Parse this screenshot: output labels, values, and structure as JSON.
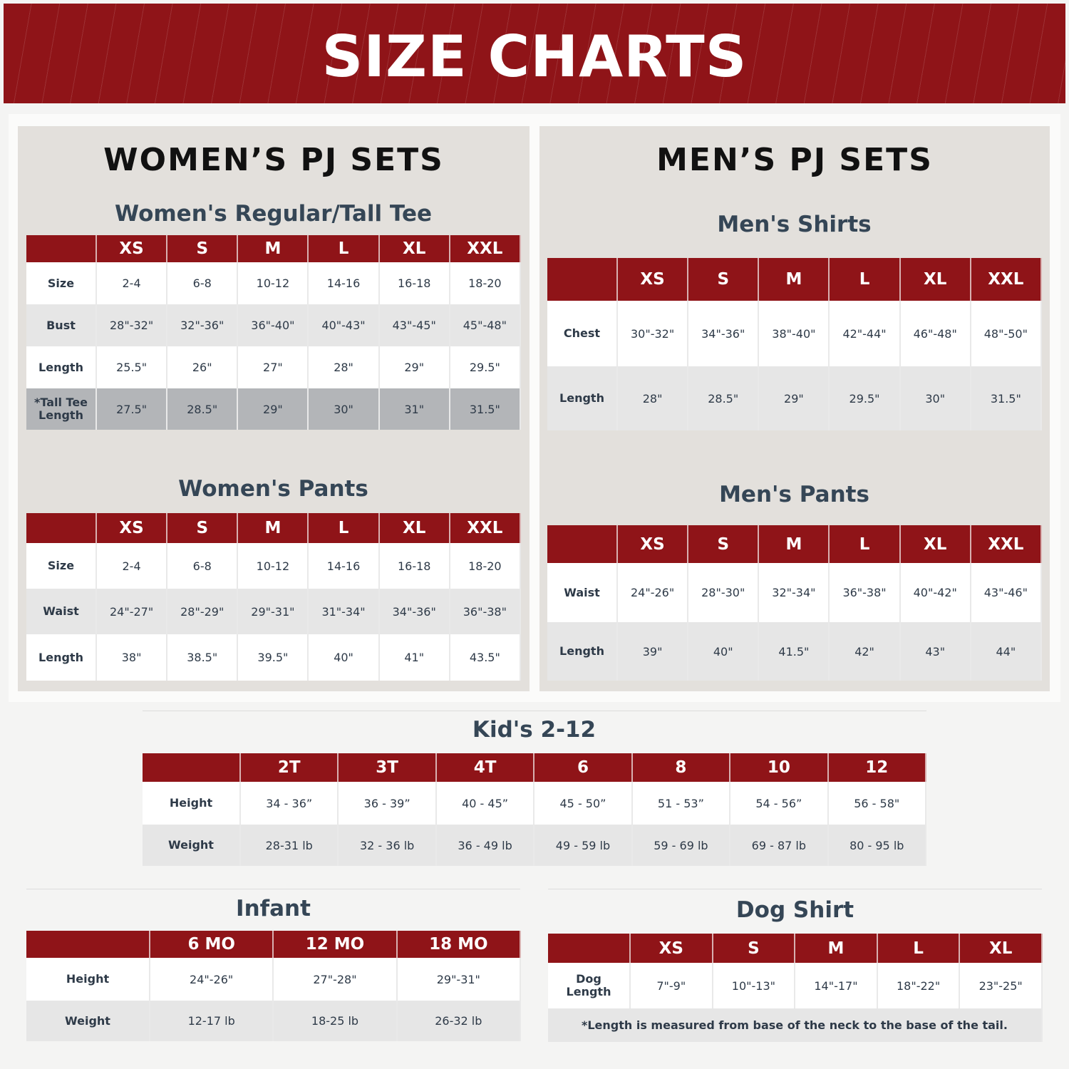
{
  "title": "SIZE CHARTS",
  "colors": {
    "accent": "#8f1418",
    "panel": "#e3e0dc",
    "text": "#2e3a48"
  },
  "women": {
    "heading": "WOMEN’S PJ SETS",
    "tee": {
      "title": "Women's Regular/Tall Tee",
      "columns": [
        "XS",
        "S",
        "M",
        "L",
        "XL",
        "XXL"
      ],
      "rows": [
        {
          "label": "Size",
          "values": [
            "2-4",
            "6-8",
            "10-12",
            "14-16",
            "16-18",
            "18-20"
          ]
        },
        {
          "label": "Bust",
          "values": [
            "28\"-32\"",
            "32\"-36\"",
            "36\"-40\"",
            "40\"-43\"",
            "43\"-45\"",
            "45\"-48\""
          ]
        },
        {
          "label": "Length",
          "values": [
            "25.5\"",
            "26\"",
            "27\"",
            "28\"",
            "29\"",
            "29.5\""
          ]
        },
        {
          "label": "*Tall Tee Length",
          "values": [
            "27.5\"",
            "28.5\"",
            "29\"",
            "30\"",
            "31\"",
            "31.5\""
          ]
        }
      ]
    },
    "pants": {
      "title": "Women's Pants",
      "columns": [
        "XS",
        "S",
        "M",
        "L",
        "XL",
        "XXL"
      ],
      "rows": [
        {
          "label": "Size",
          "values": [
            "2-4",
            "6-8",
            "10-12",
            "14-16",
            "16-18",
            "18-20"
          ]
        },
        {
          "label": "Waist",
          "values": [
            "24\"-27\"",
            "28\"-29\"",
            "29\"-31\"",
            "31\"-34\"",
            "34\"-36\"",
            "36\"-38\""
          ]
        },
        {
          "label": "Length",
          "values": [
            "38\"",
            "38.5\"",
            "39.5\"",
            "40\"",
            "41\"",
            "43.5\""
          ]
        }
      ]
    }
  },
  "men": {
    "heading": "MEN’S PJ SETS",
    "shirts": {
      "title": "Men's Shirts",
      "columns": [
        "XS",
        "S",
        "M",
        "L",
        "XL",
        "XXL"
      ],
      "rows": [
        {
          "label": "Chest",
          "values": [
            "30\"-32\"",
            "34\"-36\"",
            "38\"-40\"",
            "42\"-44\"",
            "46\"-48\"",
            "48\"-50\""
          ]
        },
        {
          "label": "Length",
          "values": [
            "28\"",
            "28.5\"",
            "29\"",
            "29.5\"",
            "30\"",
            "31.5\""
          ]
        }
      ]
    },
    "pants": {
      "title": "Men's Pants",
      "columns": [
        "XS",
        "S",
        "M",
        "L",
        "XL",
        "XXL"
      ],
      "rows": [
        {
          "label": "Waist",
          "values": [
            "24\"-26\"",
            "28\"-30\"",
            "32\"-34\"",
            "36\"-38\"",
            "40\"-42\"",
            "43\"-46\""
          ]
        },
        {
          "label": "Length",
          "values": [
            "39\"",
            "40\"",
            "41.5\"",
            "42\"",
            "43\"",
            "44\""
          ]
        }
      ]
    }
  },
  "kids": {
    "title": "Kid's 2-12",
    "columns": [
      "2T",
      "3T",
      "4T",
      "6",
      "8",
      "10",
      "12"
    ],
    "rows": [
      {
        "label": "Height",
        "values": [
          "34 - 36”",
          "36 - 39”",
          "40 - 45”",
          "45 - 50”",
          "51 - 53”",
          "54 - 56”",
          "56 - 58\""
        ]
      },
      {
        "label": "Weight",
        "values": [
          "28-31 lb",
          "32 - 36 lb",
          "36 - 49 lb",
          "49 - 59 lb",
          "59 - 69 lb",
          "69 - 87 lb",
          "80 - 95 lb"
        ]
      }
    ]
  },
  "infant": {
    "title": "Infant",
    "columns": [
      "6 MO",
      "12 MO",
      "18 MO"
    ],
    "rows": [
      {
        "label": "Height",
        "values": [
          "24\"-26\"",
          "27\"-28\"",
          "29\"-31\""
        ]
      },
      {
        "label": "Weight",
        "values": [
          "12-17 lb",
          "18-25 lb",
          "26-32 lb"
        ]
      }
    ]
  },
  "dog": {
    "title": "Dog Shirt",
    "columns": [
      "XS",
      "S",
      "M",
      "L",
      "XL"
    ],
    "rows": [
      {
        "label": "Dog Length",
        "values": [
          "7\"-9\"",
          "10\"-13\"",
          "14\"-17\"",
          "18\"-22\"",
          "23\"-25\""
        ]
      }
    ],
    "note": "*Length is measured from base of the neck to the base of the tail."
  }
}
